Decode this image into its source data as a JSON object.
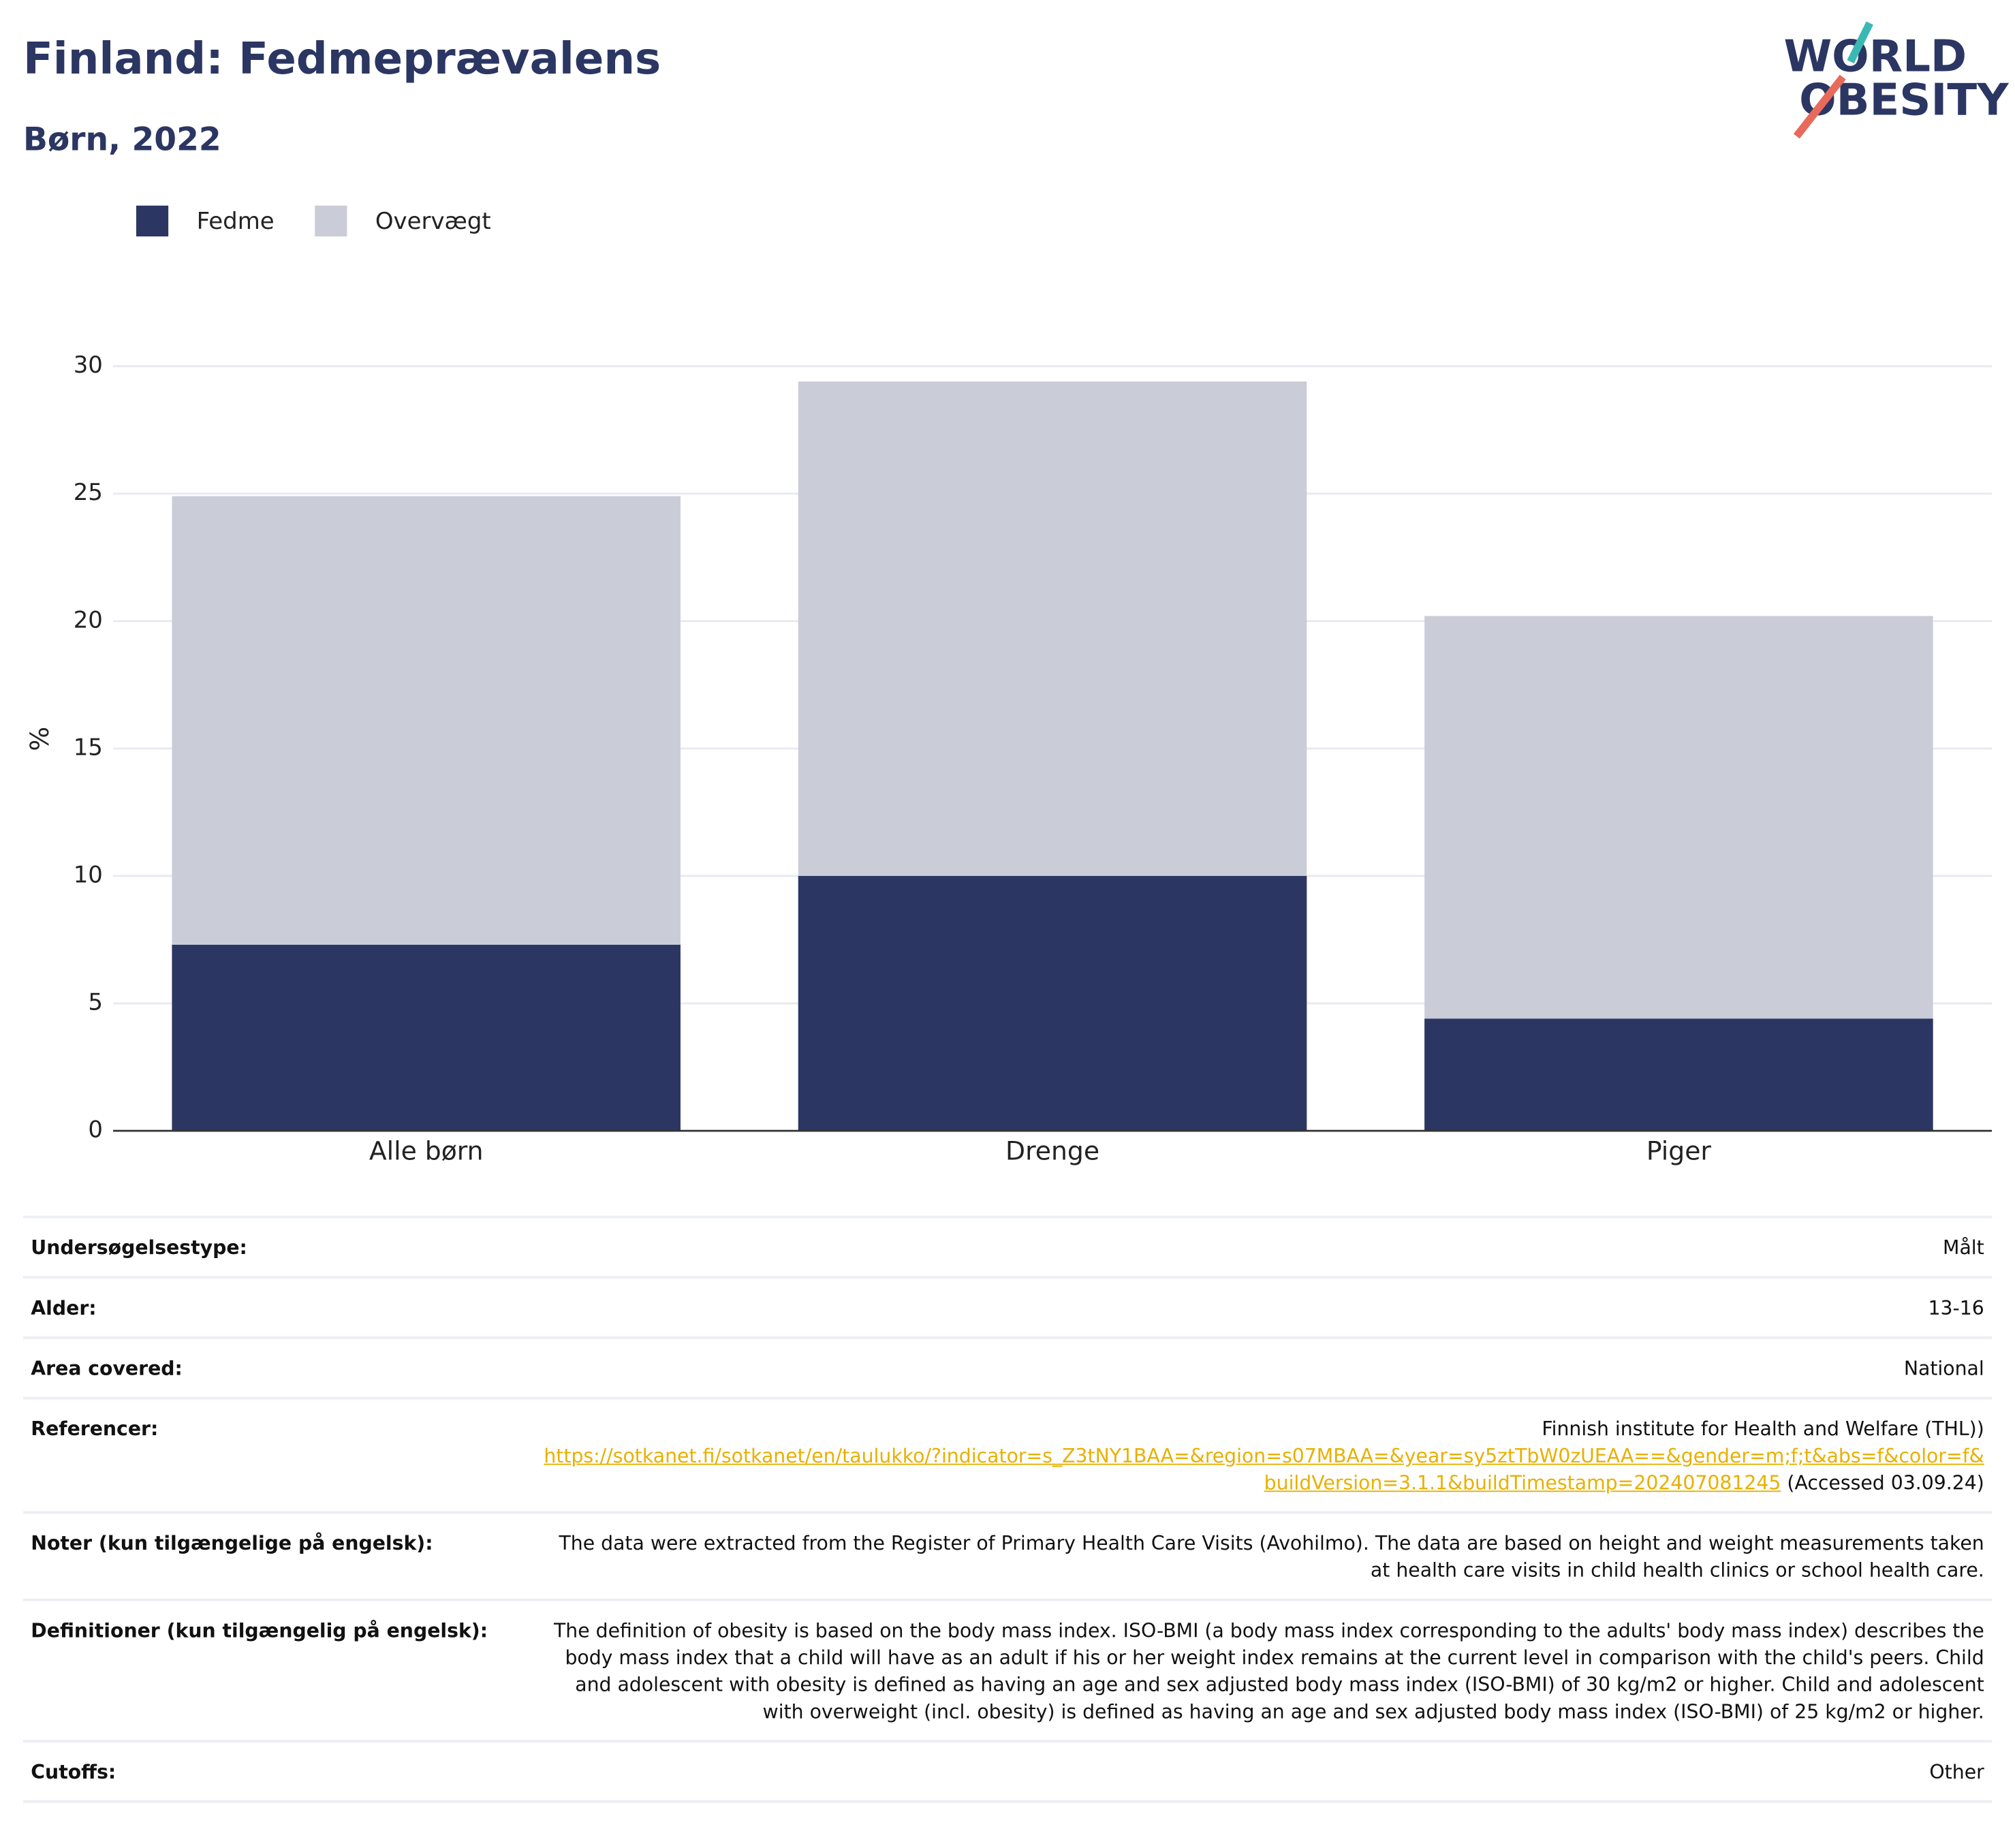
{
  "header": {
    "logo_top": "WORLD",
    "logo_bottom": "OBESITY"
  },
  "chart_data": {
    "type": "bar",
    "barmode": "overlay",
    "title": "Finland: Fedmeprævalens",
    "subtitle": "Børn, 2022",
    "y_label": "%",
    "categories": [
      "Alle børn",
      "Drenge",
      "Piger"
    ],
    "series": [
      {
        "name": "Fedme",
        "color": "#2b3663",
        "values": [
          7.3,
          10.0,
          4.4
        ]
      },
      {
        "name": "Overvægt",
        "color": "#caccd8",
        "values": [
          24.9,
          29.4,
          20.2
        ]
      }
    ],
    "ylim": [
      0,
      30
    ],
    "yticks": [
      0,
      5,
      10,
      15,
      20,
      25,
      30
    ],
    "grid": true
  },
  "table": {
    "rows": [
      {
        "label": "Undersøgelsestype:",
        "value": "Målt"
      },
      {
        "label": "Alder:",
        "value": "13-16"
      },
      {
        "label": "Area covered:",
        "value": "National"
      },
      {
        "label": "Referencer:",
        "source": "Finnish institute for Health and Welfare (THL))",
        "url": "https://sotkanet.fi/sotkanet/en/taulukko/?indicator=s_Z3tNY1BAA=&region=s07MBAA=&year=sy5ztTbW0zUEAA==&gender=m;f;t&abs=f&color=f&buildVersion=3.1.1&buildTimestamp=202407081245",
        "accessed": "(Accessed 03.09.24)"
      },
      {
        "label": "Noter (kun tilgængelige på engelsk):",
        "value": "The data were extracted from the Register of Primary Health Care Visits (Avohilmo). The data are based on height and weight measurements taken at health care visits in child health clinics or school health care."
      },
      {
        "label": "Definitioner (kun tilgængelig på engelsk):",
        "value": "The definition of obesity is based on the body mass index. ISO-BMI (a body mass index corresponding to the adults' body mass index) describes the body mass index that a child will have as an adult if his or her weight index remains at the current level in comparison with the child's peers. Child and adolescent with obesity is defined as having an age and sex adjusted body mass index (ISO-BMI) of 30 kg/m2 or higher. Child and adolescent with overweight (incl. obesity) is defined as having an age and sex adjusted body mass index (ISO-BMI) of 25 kg/m2 or higher."
      },
      {
        "label": "Cutoffs:",
        "value": "Other"
      }
    ]
  }
}
